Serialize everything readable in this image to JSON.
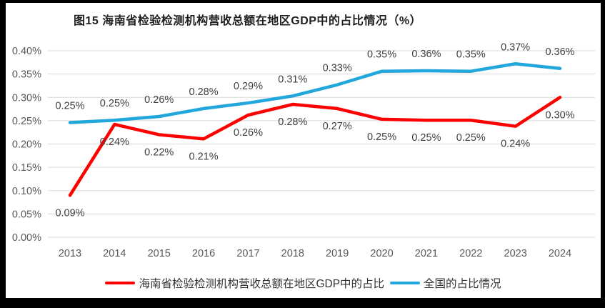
{
  "chart_data": {
    "type": "line",
    "title": "图15 海南省检验检测机构营收总额在地区GDP中的占比情况（%）",
    "x": [
      "2013",
      "2014",
      "2015",
      "2016",
      "2017",
      "2018",
      "2019",
      "2020",
      "2021",
      "2022",
      "2023",
      "2024"
    ],
    "yticks": [
      "0.00%",
      "0.05%",
      "0.10%",
      "0.15%",
      "0.20%",
      "0.25%",
      "0.30%",
      "0.35%",
      "0.40%"
    ],
    "ylim_pct": [
      0.0,
      0.4
    ],
    "grid": true,
    "legend_position": "bottom",
    "colors": {
      "hainan_red": "#ff0000",
      "national_blue": "#22a7dc",
      "gridline": "#d9d9d9",
      "tick_text": "#595959",
      "label_text": "#404040"
    },
    "series": [
      {
        "name": "海南省检验检测机构营收总额在地区GDP中的占比",
        "color": "#ff0000",
        "values_pct": [
          0.09,
          0.24,
          0.22,
          0.21,
          0.26,
          0.28,
          0.27,
          0.25,
          0.25,
          0.25,
          0.24,
          0.3
        ],
        "labels": [
          "0.09%",
          "0.24%",
          "0.22%",
          "0.21%",
          "0.26%",
          "0.28%",
          "0.27%",
          "0.25%",
          "0.25%",
          "0.25%",
          "0.24%",
          "0.30%"
        ],
        "label_position": "below",
        "plot_values_pct_estimated": [
          0.09,
          0.242,
          0.22,
          0.211,
          0.262,
          0.285,
          0.276,
          0.253,
          0.251,
          0.251,
          0.238,
          0.3
        ]
      },
      {
        "name": "全国的占比情况",
        "color": "#22a7dc",
        "values_pct": [
          0.25,
          0.25,
          0.26,
          0.28,
          0.29,
          0.31,
          0.33,
          0.35,
          0.36,
          0.35,
          0.37,
          0.36
        ],
        "labels": [
          "0.25%",
          "0.25%",
          "0.26%",
          "0.28%",
          "0.29%",
          "0.31%",
          "0.33%",
          "0.35%",
          "0.36%",
          "0.35%",
          "0.37%",
          "0.36%"
        ],
        "label_position": "above",
        "plot_values_pct_estimated": [
          0.246,
          0.251,
          0.259,
          0.276,
          0.288,
          0.303,
          0.327,
          0.356,
          0.357,
          0.356,
          0.372,
          0.362
        ]
      }
    ]
  }
}
